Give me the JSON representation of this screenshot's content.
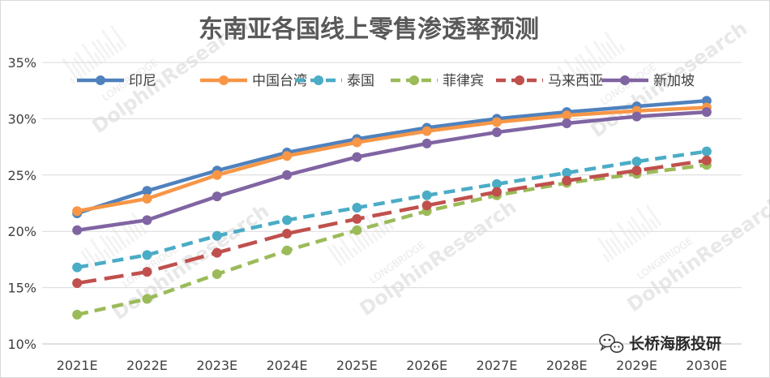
{
  "chart_data": {
    "type": "line",
    "title": "东南亚各国线上零售渗透率预测",
    "categories": [
      "2021E",
      "2022E",
      "2023E",
      "2024E",
      "2025E",
      "2026E",
      "2027E",
      "2028E",
      "2029E",
      "2030E"
    ],
    "y_tick_labels": [
      "10%",
      "15%",
      "20%",
      "25%",
      "30%",
      "35%"
    ],
    "ylim": [
      10,
      35
    ],
    "y_unit": "%",
    "grid": true,
    "legend_position": "top",
    "series": [
      {
        "name": "印尼",
        "color": "#4f81bd",
        "style": "solid",
        "values": [
          21.6,
          23.6,
          25.4,
          27.0,
          28.2,
          29.2,
          30.0,
          30.6,
          31.1,
          31.6
        ]
      },
      {
        "name": "中国台湾",
        "color": "#f79646",
        "style": "solid",
        "values": [
          21.8,
          22.9,
          25.0,
          26.7,
          27.9,
          28.9,
          29.7,
          30.3,
          30.7,
          31.0
        ]
      },
      {
        "name": "泰国",
        "color": "#4bacc6",
        "style": "dash",
        "values": [
          16.8,
          17.9,
          19.6,
          21.0,
          22.1,
          23.2,
          24.2,
          25.2,
          26.2,
          27.1
        ]
      },
      {
        "name": "菲律宾",
        "color": "#9bbb59",
        "style": "dash",
        "values": [
          12.6,
          14.0,
          16.2,
          18.3,
          20.1,
          21.8,
          23.2,
          24.3,
          25.1,
          25.9
        ]
      },
      {
        "name": "马来西亚",
        "color": "#c0504d",
        "style": "longdash",
        "values": [
          15.4,
          16.4,
          18.1,
          19.8,
          21.1,
          22.3,
          23.5,
          24.5,
          25.4,
          26.3
        ]
      },
      {
        "name": "新加坡",
        "color": "#8064a2",
        "style": "solid",
        "values": [
          20.1,
          21.0,
          23.1,
          25.0,
          26.6,
          27.8,
          28.8,
          29.6,
          30.2,
          30.6
        ]
      }
    ]
  },
  "watermark": {
    "brand": "LONGBRIDGE",
    "name": "DolphinResearch"
  },
  "branding": {
    "label": "长桥海豚投研",
    "icon": "wechat-icon"
  }
}
